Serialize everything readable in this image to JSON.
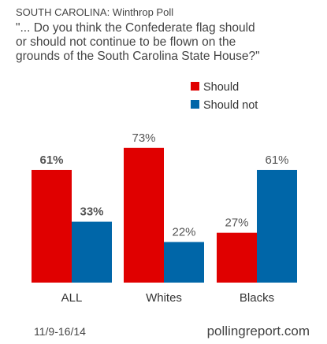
{
  "chart_data": {
    "type": "bar",
    "title_line1": "SOUTH CAROLINA:  Winthrop Poll",
    "question_lines": [
      "\"... Do you think the Confederate flag should",
      "or should not continue to be flown on the",
      "grounds of the South Carolina State House?\""
    ],
    "categories": [
      "ALL",
      "Whites",
      "Blacks"
    ],
    "series": [
      {
        "name": "Should",
        "color": "#e00000",
        "values": [
          61,
          73,
          27
        ],
        "labels": [
          "61%",
          "73%",
          "27%"
        ]
      },
      {
        "name": "Should not",
        "color": "#0066a8",
        "values": [
          33,
          22,
          61
        ],
        "labels": [
          "33%",
          "22%",
          "61%"
        ]
      }
    ],
    "ylim": [
      0,
      100
    ],
    "grid": false,
    "legend": "top-right",
    "footer_date": "11/9-16/14",
    "footer_source": "pollingreport.com"
  }
}
